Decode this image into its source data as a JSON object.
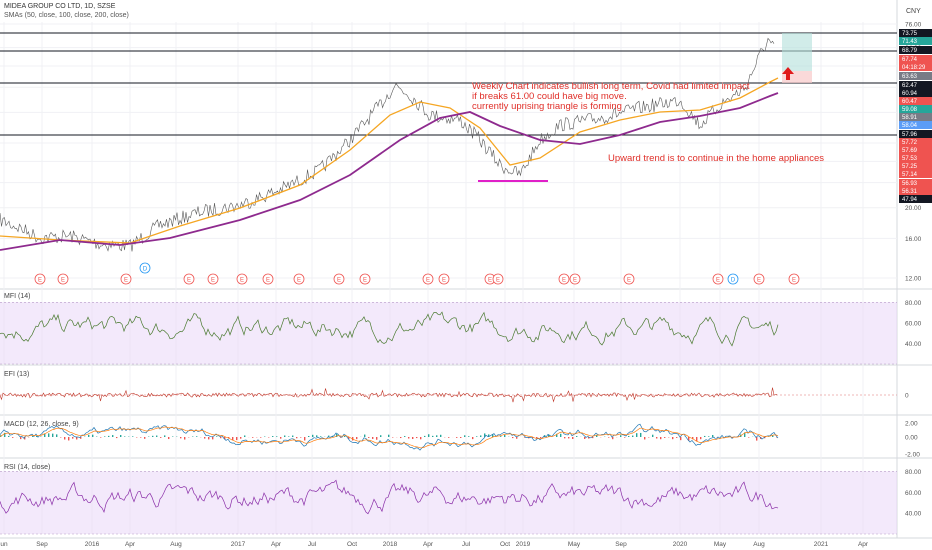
{
  "header": {
    "title": "MIDEA GROUP CO LTD, 1D, SZSE",
    "indicator": "SMAs (50, close, 100, close, 200, close)"
  },
  "currency": "CNY",
  "annotations": {
    "lines": [
      "Weekly Chart indicates bullish long term, Covid had limited impact",
      "if breaks 61.00 could have big move.",
      "currently uprising triangle is forming"
    ],
    "trend_note": "Upward trend is to continue in the home appliances"
  },
  "colors": {
    "sma50": "#f5a623",
    "sma200": "#8e2a8e",
    "price": "#5a5a5a",
    "support": "#e020c8",
    "note": "#e0302a",
    "mfi": "#4a7a30",
    "rsi": "#8a2ea8",
    "efi": "#c0392b",
    "macd": "#1f77b4",
    "signal": "#ff7f0e",
    "band": "#ead7f7"
  },
  "chart_data": [
    {
      "type": "line",
      "title": "",
      "log_scale": true,
      "x_ticks": [
        "un",
        "Sep",
        "2016",
        "Apr",
        "Aug",
        "2017",
        "Apr",
        "Jul",
        "Oct",
        "2018",
        "Apr",
        "Jul",
        "Oct",
        "2019",
        "May",
        "Sep",
        "2020",
        "May",
        "Aug",
        "2021",
        "Apr"
      ],
      "y_ticks": [
        "76.00",
        "72.00",
        "64.00",
        "60.00",
        "56.00",
        "52.00",
        "48.00",
        "44.00",
        "40.00",
        "36.00",
        "32.00",
        "28.00",
        "24.00",
        "20.00",
        "16.00",
        "12.00"
      ],
      "price_labels": [
        {
          "text": "73.75",
          "color": "#131722"
        },
        {
          "text": "71.43",
          "color": "#26a69a"
        },
        {
          "text": "68.79",
          "color": "#131722"
        },
        {
          "text": "67.74",
          "color": "#ef5350"
        },
        {
          "text": "04:18:29",
          "color": "#ef5350"
        },
        {
          "text": "63.63",
          "color": "#787b86"
        },
        {
          "text": "62.47",
          "color": "#131722"
        },
        {
          "text": "60.94",
          "color": "#131722"
        },
        {
          "text": "60.47",
          "color": "#ef5350"
        },
        {
          "text": "59.08",
          "color": "#26a69a"
        },
        {
          "text": "58.91",
          "color": "#787b86"
        },
        {
          "text": "58.04",
          "color": "#5b9cf6"
        },
        {
          "text": "57.96",
          "color": "#131722"
        },
        {
          "text": "57.72",
          "color": "#ef5350"
        },
        {
          "text": "57.69",
          "color": "#ef5350"
        },
        {
          "text": "57.53",
          "color": "#ef5350"
        },
        {
          "text": "57.25",
          "color": "#ef5350"
        },
        {
          "text": "57.14",
          "color": "#ef5350"
        },
        {
          "text": "56.93",
          "color": "#ef5350"
        },
        {
          "text": "56.31",
          "color": "#ef5350"
        },
        {
          "text": "47.94",
          "color": "#131722"
        }
      ],
      "horizontal_levels": [
        73.75,
        68.79,
        62.47,
        57.96
      ],
      "event_markers": [
        "E",
        "E",
        "E",
        "D",
        "E",
        "E",
        "E",
        "E",
        "E",
        "E",
        "E",
        "E",
        "E",
        "E",
        "E",
        "E",
        "E",
        "E",
        "E",
        "D",
        "E",
        "E"
      ]
    },
    {
      "type": "line",
      "title": "MFI (14)",
      "ylim": [
        20,
        90
      ],
      "y_ticks": [
        "80.00",
        "60.00",
        "40.00"
      ]
    },
    {
      "type": "line",
      "title": "EFI (13)",
      "y_ticks": [
        "0"
      ]
    },
    {
      "type": "bar",
      "title": "MACD (12, 26, close, 9)",
      "y_ticks": [
        "2.00",
        "0.00",
        "-2.00"
      ]
    },
    {
      "type": "line",
      "title": "RSI (14, close)",
      "ylim": [
        20,
        90
      ],
      "y_ticks": [
        "80.00",
        "60.00",
        "40.00"
      ]
    }
  ]
}
